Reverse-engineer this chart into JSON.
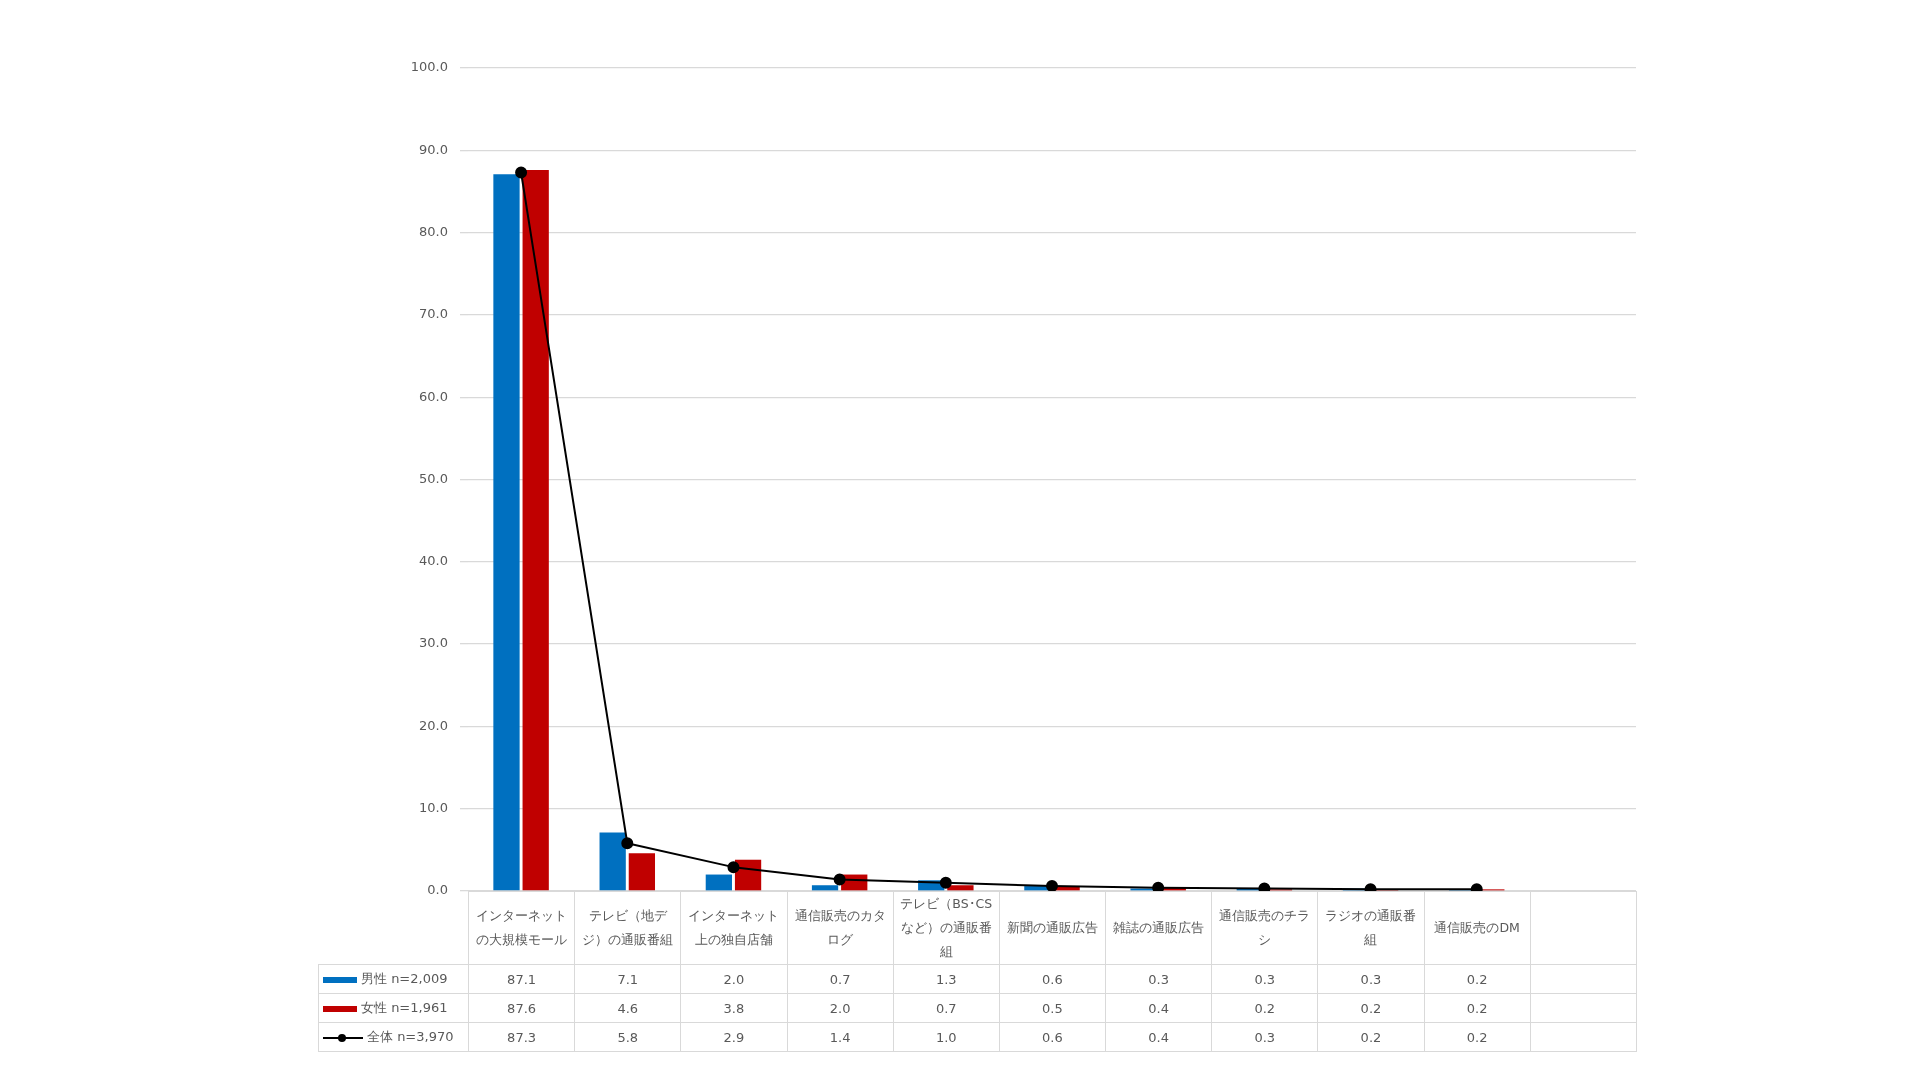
{
  "chart_data": {
    "type": "bar",
    "categories": [
      "インターネットの大規模モール",
      "テレビ（地デジ）の通販番組",
      "インターネット上の独自店舗",
      "通信販売のカタログ",
      "テレビ（BS･CSなど）の通販番組",
      "新聞の通販広告",
      "雑誌の通販広告",
      "通信販売のチラシ",
      "ラジオの通販番組",
      "通信販売のDM",
      null
    ],
    "series": [
      {
        "name": "男性 n=2,009",
        "color": "#0070c0",
        "values": [
          87.1,
          7.1,
          2.0,
          0.7,
          1.3,
          0.6,
          0.3,
          0.3,
          0.3,
          0.2,
          null
        ],
        "value_labels": [
          "87.1",
          "7.1",
          "2.0",
          "0.7",
          "1.3",
          "0.6",
          "0.3",
          "0.3",
          "0.3",
          "0.2",
          null
        ]
      },
      {
        "name": "女性 n=1,961",
        "color": "#c00000",
        "values": [
          87.6,
          4.6,
          3.8,
          2.0,
          0.7,
          0.5,
          0.4,
          0.2,
          0.2,
          0.2,
          null
        ],
        "value_labels": [
          "87.6",
          "4.6",
          "3.8",
          "2.0",
          "0.7",
          "0.5",
          "0.4",
          "0.2",
          "0.2",
          "0.2",
          null
        ]
      },
      {
        "name": "全体 n=3,970",
        "type": "line",
        "color": "#000000",
        "values": [
          87.3,
          5.8,
          2.9,
          1.4,
          1.0,
          0.6,
          0.4,
          0.3,
          0.2,
          0.2,
          null
        ],
        "value_labels": [
          "87.3",
          "5.8",
          "2.9",
          "1.4",
          "1.0",
          "0.6",
          "0.4",
          "0.3",
          "0.2",
          "0.2",
          null
        ]
      }
    ],
    "ylim": [
      0,
      100
    ],
    "yticks": [
      {
        "value": 0,
        "label": "0.0"
      },
      {
        "value": 10,
        "label": "10.0"
      },
      {
        "value": 20,
        "label": "20.0"
      },
      {
        "value": 30,
        "label": "30.0"
      },
      {
        "value": 40,
        "label": "40.0"
      },
      {
        "value": 50,
        "label": "50.0"
      },
      {
        "value": 60,
        "label": "60.0"
      },
      {
        "value": 70,
        "label": "70.0"
      },
      {
        "value": 80,
        "label": "80.0"
      },
      {
        "value": 90,
        "label": "90.0"
      },
      {
        "value": 100,
        "label": "100.0"
      }
    ],
    "grid": "y",
    "legend": "bottom",
    "marker": "circle",
    "line_style": "solid"
  }
}
